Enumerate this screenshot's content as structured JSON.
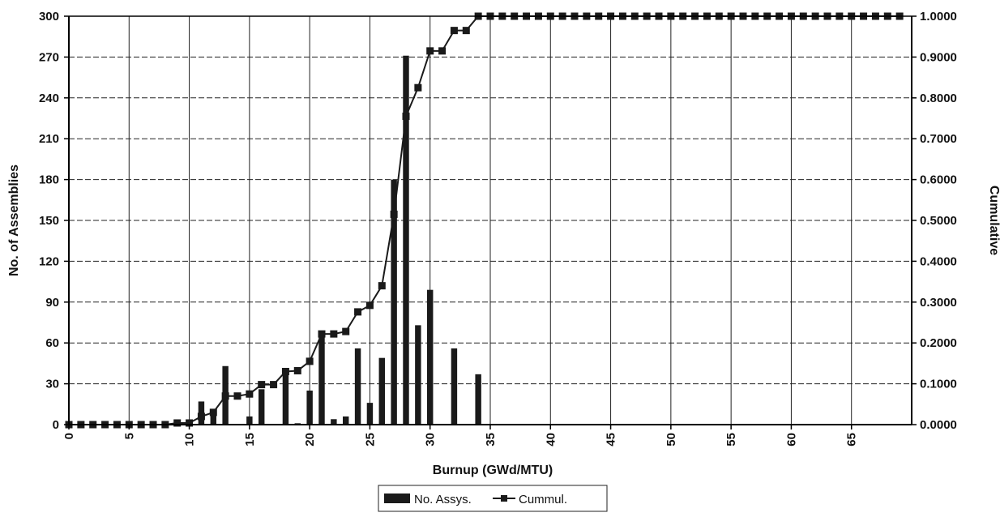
{
  "chart_data": {
    "type": "bar",
    "title": "",
    "xlabel": "Burnup (GWd/MTU)",
    "ylabel": "No. of Assemblies",
    "y2label": "Cumulative",
    "xlim": [
      0,
      70
    ],
    "ylim": [
      0,
      300
    ],
    "y2lim": [
      0,
      1
    ],
    "x_ticks": [
      "0",
      "5",
      "10",
      "15",
      "20",
      "25",
      "30",
      "35",
      "40",
      "45",
      "50",
      "55",
      "60",
      "65"
    ],
    "y_ticks": [
      "0",
      "30",
      "60",
      "90",
      "120",
      "150",
      "180",
      "210",
      "240",
      "270",
      "300"
    ],
    "y2_ticks": [
      "0.0000",
      "0.1000",
      "0.2000",
      "0.3000",
      "0.4000",
      "0.5000",
      "0.6000",
      "0.7000",
      "0.8000",
      "0.9000",
      "1.0000"
    ],
    "grid": true,
    "legend_position": "bottom-center",
    "legend": [
      "No. Assys.",
      "Cummul."
    ],
    "series": [
      {
        "name": "No. Assys.",
        "type": "bar",
        "axis": "left",
        "x": [
          9,
          11,
          12,
          13,
          15,
          16,
          18,
          19,
          20,
          21,
          22,
          23,
          24,
          25,
          26,
          27,
          28,
          29,
          30,
          32,
          34
        ],
        "values": [
          2,
          17,
          8,
          43,
          6,
          26,
          40,
          1,
          25,
          64,
          4,
          6,
          56,
          16,
          49,
          180,
          271,
          73,
          99,
          56,
          37
        ]
      },
      {
        "name": "Cummul.",
        "type": "line",
        "axis": "right",
        "x": [
          0,
          1,
          2,
          3,
          4,
          5,
          6,
          7,
          8,
          9,
          10,
          11,
          12,
          13,
          14,
          15,
          16,
          17,
          18,
          19,
          20,
          21,
          22,
          23,
          24,
          25,
          26,
          27,
          28,
          29,
          30,
          31,
          32,
          33,
          34,
          35,
          36,
          37,
          38,
          39,
          40,
          41,
          42,
          43,
          44,
          45,
          46,
          47,
          48,
          49,
          50,
          51,
          52,
          53,
          54,
          55,
          56,
          57,
          58,
          59,
          60,
          61,
          62,
          63,
          64,
          65,
          66,
          67,
          68,
          69
        ],
        "values": [
          0,
          0,
          0,
          0,
          0,
          0,
          0,
          0,
          0,
          0.004,
          0.004,
          0.02,
          0.03,
          0.07,
          0.07,
          0.075,
          0.098,
          0.098,
          0.13,
          0.132,
          0.155,
          0.222,
          0.222,
          0.228,
          0.276,
          0.292,
          0.34,
          0.515,
          0.755,
          0.825,
          0.915,
          0.915,
          0.965,
          0.965,
          1,
          1,
          1,
          1,
          1,
          1,
          1,
          1,
          1,
          1,
          1,
          1,
          1,
          1,
          1,
          1,
          1,
          1,
          1,
          1,
          1,
          1,
          1,
          1,
          1,
          1,
          1,
          1,
          1,
          1,
          1,
          1,
          1,
          1,
          1,
          1
        ]
      }
    ]
  },
  "colors": {
    "bar": "#1a1a1a",
    "line": "#1a1a1a",
    "grid": "#222222",
    "axis": "#000000"
  }
}
